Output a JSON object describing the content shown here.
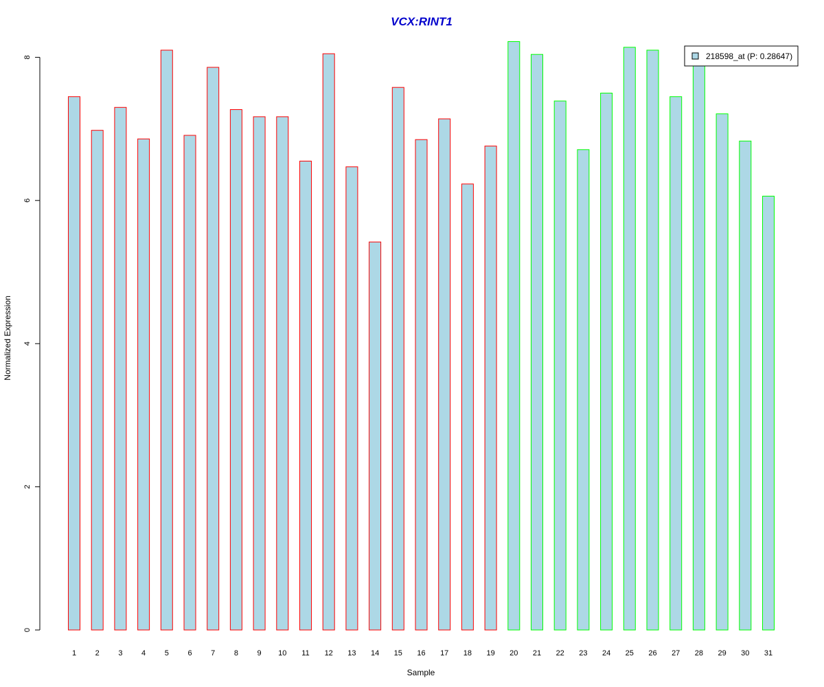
{
  "chart_data": {
    "type": "bar",
    "title": "VCX:RINT1",
    "xlabel": "Sample",
    "ylabel": "Normalized Expression",
    "ylim": [
      0,
      8.4
    ],
    "yticks": [
      0,
      2,
      4,
      6,
      8
    ],
    "categories": [
      "1",
      "2",
      "3",
      "4",
      "5",
      "6",
      "7",
      "8",
      "9",
      "10",
      "11",
      "12",
      "13",
      "14",
      "15",
      "16",
      "17",
      "18",
      "19",
      "20",
      "21",
      "22",
      "23",
      "24",
      "25",
      "26",
      "27",
      "28",
      "29",
      "30",
      "31"
    ],
    "series": [
      {
        "name": "218598_at (P: 0.28647)",
        "values": [
          7.45,
          6.98,
          7.3,
          6.86,
          8.1,
          6.91,
          7.86,
          7.27,
          7.17,
          7.17,
          6.55,
          8.05,
          6.47,
          5.42,
          7.58,
          6.85,
          7.14,
          6.23,
          6.76,
          8.22,
          8.04,
          7.39,
          6.71,
          7.5,
          8.14,
          8.1,
          7.45,
          7.96,
          7.21,
          6.83,
          6.06
        ]
      }
    ],
    "bar_fill": "#add8e6",
    "group_border_colors": [
      "#ff0000",
      "#ff0000",
      "#ff0000",
      "#ff0000",
      "#ff0000",
      "#ff0000",
      "#ff0000",
      "#ff0000",
      "#ff0000",
      "#ff0000",
      "#ff0000",
      "#ff0000",
      "#ff0000",
      "#ff0000",
      "#ff0000",
      "#ff0000",
      "#ff0000",
      "#ff0000",
      "#ff0000",
      "#00ff00",
      "#00ff00",
      "#00ff00",
      "#00ff00",
      "#00ff00",
      "#00ff00",
      "#00ff00",
      "#00ff00",
      "#00ff00",
      "#00ff00",
      "#00ff00",
      "#00ff00"
    ],
    "title_color": "#0000cc",
    "legend": {
      "label": "218598_at (P: 0.28647)",
      "placement": "top-right"
    },
    "grid": false
  }
}
